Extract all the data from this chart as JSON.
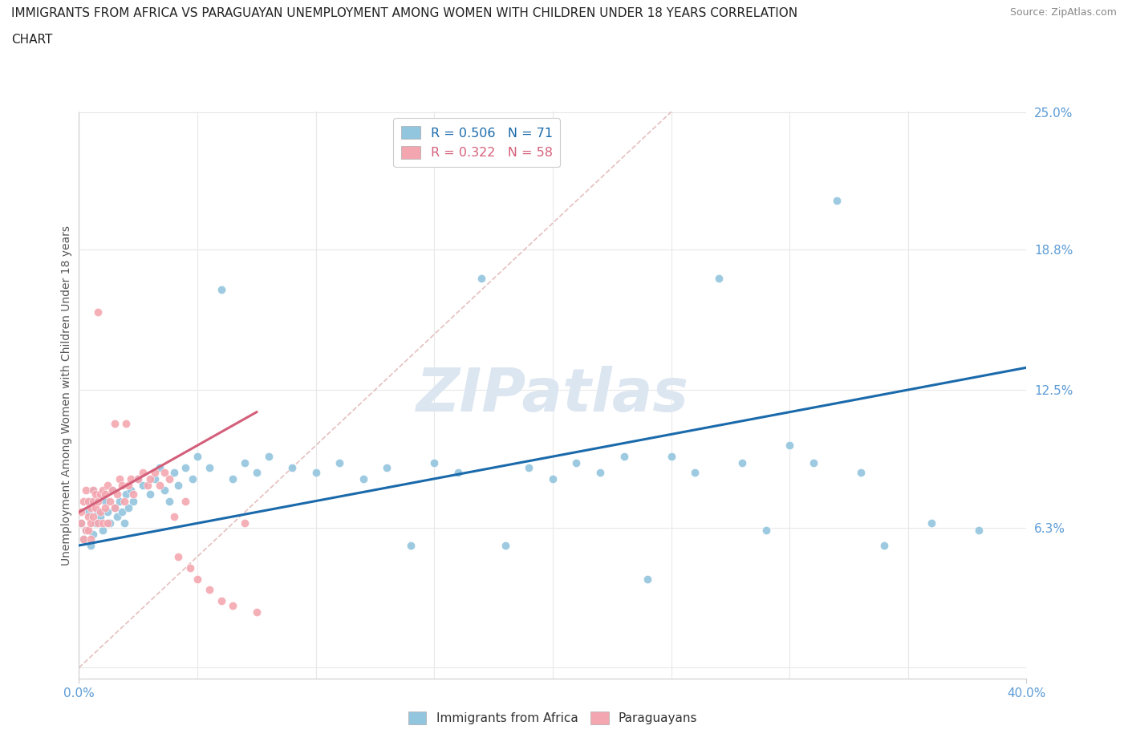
{
  "title_line1": "IMMIGRANTS FROM AFRICA VS PARAGUAYAN UNEMPLOYMENT AMONG WOMEN WITH CHILDREN UNDER 18 YEARS CORRELATION",
  "title_line2": "CHART",
  "source": "Source: ZipAtlas.com",
  "ylabel_label": "Unemployment Among Women with Children Under 18 years",
  "blue_color": "#92c5de",
  "pink_color": "#f4a6b0",
  "blue_line_color": "#1a6aab",
  "pink_line_color": "#d45f7a",
  "diag_line_color": "#e0b0b0",
  "grid_color": "#e8e8e8",
  "tick_label_color": "#5b9bd5",
  "xmin": 0.0,
  "xmax": 0.4,
  "ymin": -0.005,
  "ymax": 0.25,
  "watermark_color": "#dce6f1",
  "blue_scatter_x": [
    0.001,
    0.002,
    0.003,
    0.004,
    0.005,
    0.005,
    0.006,
    0.006,
    0.007,
    0.008,
    0.009,
    0.01,
    0.011,
    0.012,
    0.013,
    0.014,
    0.015,
    0.016,
    0.017,
    0.018,
    0.019,
    0.02,
    0.021,
    0.022,
    0.023,
    0.025,
    0.027,
    0.03,
    0.032,
    0.034,
    0.036,
    0.038,
    0.04,
    0.042,
    0.045,
    0.048,
    0.05,
    0.055,
    0.06,
    0.065,
    0.07,
    0.075,
    0.08,
    0.09,
    0.1,
    0.11,
    0.12,
    0.13,
    0.14,
    0.15,
    0.16,
    0.17,
    0.18,
    0.19,
    0.2,
    0.21,
    0.22,
    0.23,
    0.24,
    0.25,
    0.26,
    0.27,
    0.28,
    0.29,
    0.3,
    0.31,
    0.32,
    0.33,
    0.34,
    0.36,
    0.38
  ],
  "blue_scatter_y": [
    0.065,
    0.058,
    0.062,
    0.07,
    0.055,
    0.075,
    0.06,
    0.08,
    0.065,
    0.07,
    0.068,
    0.062,
    0.075,
    0.07,
    0.065,
    0.08,
    0.072,
    0.068,
    0.075,
    0.07,
    0.065,
    0.078,
    0.072,
    0.08,
    0.075,
    0.085,
    0.082,
    0.078,
    0.085,
    0.09,
    0.08,
    0.075,
    0.088,
    0.082,
    0.09,
    0.085,
    0.095,
    0.09,
    0.17,
    0.085,
    0.092,
    0.088,
    0.095,
    0.09,
    0.088,
    0.092,
    0.085,
    0.09,
    0.055,
    0.092,
    0.088,
    0.175,
    0.055,
    0.09,
    0.085,
    0.092,
    0.088,
    0.095,
    0.04,
    0.095,
    0.088,
    0.175,
    0.092,
    0.062,
    0.1,
    0.092,
    0.21,
    0.088,
    0.055,
    0.065,
    0.062
  ],
  "pink_scatter_x": [
    0.001,
    0.001,
    0.002,
    0.002,
    0.003,
    0.003,
    0.004,
    0.004,
    0.004,
    0.005,
    0.005,
    0.005,
    0.006,
    0.006,
    0.006,
    0.007,
    0.007,
    0.008,
    0.008,
    0.009,
    0.009,
    0.01,
    0.01,
    0.011,
    0.011,
    0.012,
    0.012,
    0.013,
    0.014,
    0.015,
    0.015,
    0.016,
    0.017,
    0.018,
    0.019,
    0.02,
    0.021,
    0.022,
    0.023,
    0.025,
    0.027,
    0.029,
    0.03,
    0.032,
    0.034,
    0.036,
    0.038,
    0.04,
    0.042,
    0.045,
    0.047,
    0.05,
    0.055,
    0.06,
    0.065,
    0.07,
    0.075,
    0.008
  ],
  "pink_scatter_y": [
    0.065,
    0.07,
    0.058,
    0.075,
    0.062,
    0.08,
    0.068,
    0.062,
    0.075,
    0.058,
    0.065,
    0.072,
    0.068,
    0.075,
    0.08,
    0.072,
    0.078,
    0.065,
    0.075,
    0.07,
    0.078,
    0.065,
    0.08,
    0.072,
    0.078,
    0.065,
    0.082,
    0.075,
    0.08,
    0.072,
    0.11,
    0.078,
    0.085,
    0.082,
    0.075,
    0.11,
    0.082,
    0.085,
    0.078,
    0.085,
    0.088,
    0.082,
    0.085,
    0.088,
    0.082,
    0.088,
    0.085,
    0.068,
    0.05,
    0.075,
    0.045,
    0.04,
    0.035,
    0.03,
    0.028,
    0.065,
    0.025,
    0.16
  ],
  "blue_trend_x": [
    0.0,
    0.4
  ],
  "blue_trend_y": [
    0.055,
    0.135
  ],
  "pink_trend_x": [
    0.0,
    0.075
  ],
  "pink_trend_y": [
    0.07,
    0.115
  ]
}
